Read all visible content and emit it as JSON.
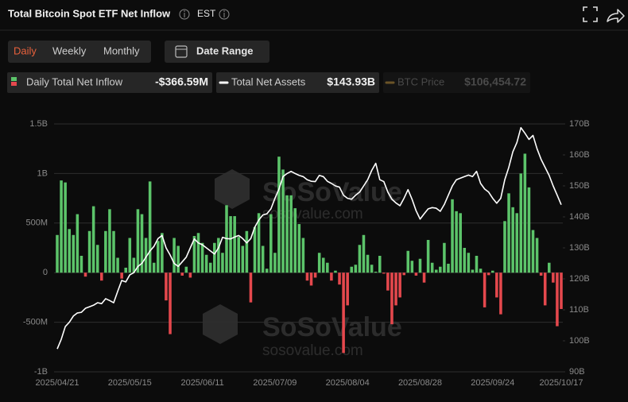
{
  "header": {
    "title": "Total Bitcoin Spot ETF Net Inflow",
    "timezone": "EST"
  },
  "tabs": [
    "Daily",
    "Weekly",
    "Monthly"
  ],
  "active_tab": 0,
  "date_range": "Date Range",
  "chart_data": {
    "type": "bar-line",
    "watermark": [
      "SoSoValue",
      "sosovalue.com"
    ],
    "categories": [
      "2025/04/21",
      null,
      null,
      null,
      null,
      null,
      null,
      null,
      null,
      null,
      null,
      null,
      null,
      null,
      null,
      null,
      null,
      null,
      "2025/05/15",
      null,
      null,
      null,
      null,
      null,
      null,
      null,
      null,
      null,
      null,
      null,
      null,
      null,
      null,
      null,
      null,
      null,
      "2025/06/11",
      null,
      null,
      null,
      null,
      null,
      null,
      null,
      null,
      null,
      null,
      null,
      null,
      null,
      null,
      null,
      null,
      null,
      "2025/07/09",
      null,
      null,
      null,
      null,
      null,
      null,
      null,
      null,
      null,
      null,
      null,
      null,
      null,
      null,
      null,
      null,
      null,
      "2025/08/04",
      null,
      null,
      null,
      null,
      null,
      null,
      null,
      null,
      null,
      null,
      null,
      null,
      null,
      null,
      null,
      null,
      null,
      "2025/08/28",
      null,
      null,
      null,
      null,
      null,
      null,
      null,
      null,
      null,
      null,
      null,
      null,
      null,
      null,
      null,
      null,
      null,
      "2025/09/24",
      null,
      null,
      null,
      null,
      null,
      null,
      null,
      null,
      null,
      null,
      null,
      null,
      null,
      null,
      null,
      null,
      "2025/10/17"
    ],
    "series": [
      {
        "name": "Daily Total Net Inflow",
        "current": "-$366.59M",
        "color": "#5cc46a",
        "negative_color": "#e5484d",
        "values": [
          380,
          930,
          910,
          440,
          380,
          590,
          170,
          -40,
          420,
          670,
          280,
          -80,
          420,
          640,
          420,
          150,
          -60,
          50,
          350,
          150,
          640,
          590,
          350,
          920,
          100,
          320,
          400,
          -280,
          -620,
          350,
          270,
          -30,
          60,
          -50,
          370,
          400,
          300,
          180,
          100,
          300,
          350,
          200,
          680,
          570,
          570,
          360,
          270,
          420,
          -300,
          460,
          600,
          270,
          40,
          590,
          200,
          1170,
          1040,
          780,
          780,
          650,
          490,
          350,
          -80,
          -130,
          -50,
          200,
          150,
          100,
          -80,
          20,
          -120,
          -810,
          -330,
          60,
          80,
          280,
          380,
          180,
          80,
          10,
          170,
          -10,
          -180,
          -520,
          -330,
          -250,
          -25,
          220,
          120,
          -30,
          140,
          -100,
          330,
          100,
          30,
          60,
          300,
          90,
          740,
          620,
          600,
          250,
          200,
          30,
          170,
          40,
          -350,
          -25,
          20,
          -250,
          -420,
          520,
          800,
          660,
          600,
          1000,
          1200,
          860,
          430,
          350,
          -30,
          -330,
          100,
          -100,
          -540,
          -366.59
        ]
      },
      {
        "name": "Total Net Assets",
        "current": "$143.93B",
        "color": "#ffffff",
        "type": "line",
        "axis": "y2",
        "values": [
          97.4,
          100.5,
          104.6,
          106,
          108,
          109,
          109.2,
          110.5,
          111,
          111.5,
          112.3,
          112,
          113.6,
          113,
          112.3,
          116,
          119.5,
          119,
          121.3,
          122,
          124,
          125,
          127,
          129,
          130.5,
          133,
          134,
          130,
          127.7,
          125,
          124,
          125.5,
          127,
          130,
          132.9,
          131.6,
          131,
          130,
          129,
          128,
          130,
          133.4,
          133,
          132.9,
          133.5,
          134,
          133,
          131.6,
          133,
          136.7,
          139,
          140.6,
          141,
          142.6,
          146,
          149,
          153,
          154,
          154.7,
          154,
          153.4,
          153,
          152,
          151.5,
          151.4,
          153.4,
          153,
          151.5,
          150.8,
          150,
          149.6,
          147,
          146,
          145.7,
          147,
          148,
          150,
          152,
          155,
          157.3,
          152,
          151.4,
          148,
          145.7,
          144.5,
          143.6,
          146,
          148.8,
          145.7,
          142,
          139.3,
          141,
          142.6,
          143,
          142.8,
          141.8,
          144,
          147,
          150,
          152,
          152.5,
          153,
          153.5,
          153,
          154.7,
          150.8,
          149,
          148,
          146,
          144.4,
          146,
          152,
          156,
          161,
          164,
          168.8,
          167,
          165,
          166.3,
          162,
          158.6,
          156,
          153.4,
          150,
          147,
          143.93
        ]
      }
    ],
    "inactive_series": {
      "name": "BTC Price",
      "current": "$106,454.72",
      "color": "#6b5427"
    },
    "ylim": [
      -1000,
      1500
    ],
    "yticks": [
      {
        "value": 1500,
        "label": "1.5B"
      },
      {
        "value": 1000,
        "label": "1B"
      },
      {
        "value": 500,
        "label": "500M"
      },
      0,
      {
        "value": -500,
        "label": "-500M"
      },
      {
        "value": -1000,
        "label": "-1B"
      }
    ],
    "y2lim": [
      90,
      170
    ],
    "y2ticks": [
      {
        "value": 170,
        "label": "170B"
      },
      {
        "value": 160,
        "label": "160B"
      },
      {
        "value": 150,
        "label": "150B"
      },
      {
        "value": 140,
        "label": "140B"
      },
      {
        "value": 130,
        "label": "130B"
      },
      {
        "value": 120,
        "label": "120B"
      },
      {
        "value": 110,
        "label": "110B"
      },
      {
        "value": 100,
        "label": "100B"
      },
      {
        "value": 90,
        "label": "90B"
      }
    ],
    "grid": true
  }
}
